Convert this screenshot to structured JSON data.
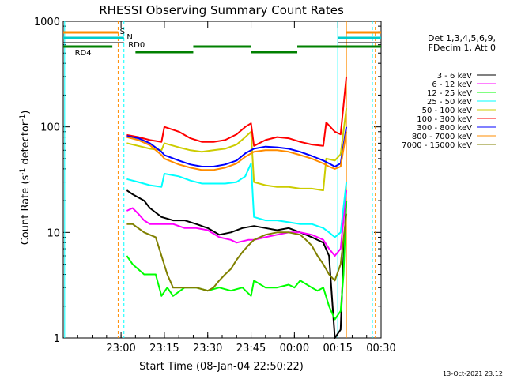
{
  "chart_data": {
    "type": "line",
    "title": "RHESSI Observing Summary Count Rates",
    "xlabel": "Start Time (08-Jan-04 22:50:22)",
    "ylabel_main": "Count Rate (s",
    "ylabel_sup1": "-1",
    "ylabel_mid": " detector",
    "ylabel_sup2": "-1",
    "ylabel_end": ")",
    "yscale": "log",
    "xlim_min": [
      -10,
      100
    ],
    "ylim": [
      1,
      1000
    ],
    "x_ticks": [
      {
        "min": 10,
        "label": "23:00"
      },
      {
        "min": 25,
        "label": "23:15"
      },
      {
        "min": 40,
        "label": "23:30"
      },
      {
        "min": 55,
        "label": "23:45"
      },
      {
        "min": 70,
        "label": "00:00"
      },
      {
        "min": 85,
        "label": "00:15"
      },
      {
        "min": 100,
        "label": "00:30"
      }
    ],
    "y_ticks": [
      {
        "value": 1,
        "label": "1"
      },
      {
        "value": 10,
        "label": "10"
      },
      {
        "value": 100,
        "label": "100"
      },
      {
        "value": 1000,
        "label": "1000"
      }
    ],
    "legend_header": [
      "Det 1,3,4,5,6,9,",
      "FDecim 1, Att 0"
    ],
    "series": [
      {
        "name": "3 - 6 keV",
        "color": "#000000",
        "points": [
          [
            12,
            25
          ],
          [
            14,
            23
          ],
          [
            18,
            20
          ],
          [
            20,
            17
          ],
          [
            24,
            14
          ],
          [
            28,
            13
          ],
          [
            32,
            13
          ],
          [
            36,
            12
          ],
          [
            40,
            11
          ],
          [
            44,
            9.5
          ],
          [
            48,
            10
          ],
          [
            52,
            11
          ],
          [
            56,
            11.5
          ],
          [
            60,
            11
          ],
          [
            64,
            10.5
          ],
          [
            68,
            11
          ],
          [
            72,
            10
          ],
          [
            76,
            9
          ],
          [
            80,
            8
          ],
          [
            82,
            6
          ],
          [
            84,
            1
          ],
          [
            86,
            1.2
          ],
          [
            87,
            6
          ],
          [
            88,
            20
          ]
        ]
      },
      {
        "name": "6 - 12 keV",
        "color": "#ff00ff",
        "points": [
          [
            12,
            16
          ],
          [
            14,
            17
          ],
          [
            16,
            15
          ],
          [
            18,
            13
          ],
          [
            20,
            12
          ],
          [
            24,
            12
          ],
          [
            28,
            12
          ],
          [
            32,
            11
          ],
          [
            36,
            11
          ],
          [
            40,
            10.5
          ],
          [
            44,
            9
          ],
          [
            48,
            8.5
          ],
          [
            50,
            8
          ],
          [
            54,
            8.5
          ],
          [
            56,
            8.5
          ],
          [
            60,
            9
          ],
          [
            64,
            9.5
          ],
          [
            68,
            10
          ],
          [
            72,
            10
          ],
          [
            76,
            9.5
          ],
          [
            78,
            9
          ],
          [
            80,
            8.5
          ],
          [
            82,
            7
          ],
          [
            84,
            6
          ],
          [
            86,
            7
          ],
          [
            88,
            25
          ]
        ]
      },
      {
        "name": "12 - 25 keV",
        "color": "#00ff00",
        "points": [
          [
            12,
            6
          ],
          [
            14,
            5
          ],
          [
            18,
            4
          ],
          [
            22,
            4
          ],
          [
            24,
            2.5
          ],
          [
            26,
            3
          ],
          [
            28,
            2.5
          ],
          [
            32,
            3
          ],
          [
            36,
            3
          ],
          [
            40,
            2.8
          ],
          [
            44,
            3
          ],
          [
            48,
            2.8
          ],
          [
            52,
            3
          ],
          [
            55,
            2.5
          ],
          [
            56,
            3.5
          ],
          [
            60,
            3
          ],
          [
            64,
            3
          ],
          [
            68,
            3.2
          ],
          [
            70,
            3
          ],
          [
            72,
            3.5
          ],
          [
            76,
            3
          ],
          [
            78,
            2.8
          ],
          [
            80,
            3
          ],
          [
            82,
            2
          ],
          [
            84,
            1.5
          ],
          [
            86,
            1.8
          ],
          [
            87,
            4
          ],
          [
            88,
            20
          ]
        ]
      },
      {
        "name": "25 - 50 keV",
        "color": "#00ffff",
        "points": [
          [
            12,
            32
          ],
          [
            16,
            30
          ],
          [
            20,
            28
          ],
          [
            24,
            27
          ],
          [
            25,
            36
          ],
          [
            30,
            34
          ],
          [
            34,
            31
          ],
          [
            38,
            29
          ],
          [
            42,
            29
          ],
          [
            46,
            29
          ],
          [
            50,
            30
          ],
          [
            53,
            34
          ],
          [
            55,
            45
          ],
          [
            56,
            14
          ],
          [
            60,
            13
          ],
          [
            64,
            13
          ],
          [
            68,
            12.5
          ],
          [
            72,
            12
          ],
          [
            76,
            12
          ],
          [
            80,
            11
          ],
          [
            82,
            10
          ],
          [
            84,
            9
          ],
          [
            86,
            10
          ],
          [
            88,
            30
          ]
        ]
      },
      {
        "name": "50 - 100 keV",
        "color": "#cccc00",
        "points": [
          [
            12,
            70
          ],
          [
            16,
            66
          ],
          [
            20,
            62
          ],
          [
            24,
            60
          ],
          [
            25,
            70
          ],
          [
            30,
            64
          ],
          [
            34,
            60
          ],
          [
            38,
            58
          ],
          [
            42,
            60
          ],
          [
            46,
            62
          ],
          [
            50,
            68
          ],
          [
            53,
            80
          ],
          [
            55,
            90
          ],
          [
            56,
            30
          ],
          [
            60,
            28
          ],
          [
            64,
            27
          ],
          [
            68,
            27
          ],
          [
            72,
            26
          ],
          [
            76,
            26
          ],
          [
            80,
            25
          ],
          [
            81,
            50
          ],
          [
            84,
            48
          ],
          [
            86,
            55
          ],
          [
            88,
            150
          ]
        ]
      },
      {
        "name": "100 - 300 keV",
        "color": "#ff0000",
        "points": [
          [
            12,
            84
          ],
          [
            16,
            80
          ],
          [
            20,
            75
          ],
          [
            24,
            72
          ],
          [
            25,
            100
          ],
          [
            30,
            90
          ],
          [
            34,
            78
          ],
          [
            38,
            72
          ],
          [
            42,
            72
          ],
          [
            46,
            75
          ],
          [
            50,
            85
          ],
          [
            53,
            100
          ],
          [
            55,
            108
          ],
          [
            56,
            66
          ],
          [
            60,
            75
          ],
          [
            64,
            80
          ],
          [
            68,
            78
          ],
          [
            72,
            72
          ],
          [
            76,
            68
          ],
          [
            80,
            66
          ],
          [
            81,
            110
          ],
          [
            84,
            90
          ],
          [
            86,
            85
          ],
          [
            88,
            300
          ]
        ]
      },
      {
        "name": "300 - 800 keV",
        "color": "#0000ff",
        "points": [
          [
            12,
            82
          ],
          [
            16,
            78
          ],
          [
            20,
            70
          ],
          [
            24,
            58
          ],
          [
            25,
            54
          ],
          [
            30,
            48
          ],
          [
            34,
            44
          ],
          [
            38,
            42
          ],
          [
            42,
            42
          ],
          [
            46,
            44
          ],
          [
            50,
            48
          ],
          [
            53,
            56
          ],
          [
            55,
            60
          ],
          [
            56,
            62
          ],
          [
            60,
            65
          ],
          [
            64,
            64
          ],
          [
            68,
            62
          ],
          [
            72,
            58
          ],
          [
            76,
            53
          ],
          [
            80,
            48
          ],
          [
            82,
            45
          ],
          [
            84,
            42
          ],
          [
            86,
            45
          ],
          [
            88,
            100
          ]
        ]
      },
      {
        "name": "800 - 7000 keV",
        "color": "#ff8c00",
        "points": [
          [
            12,
            80
          ],
          [
            16,
            75
          ],
          [
            20,
            67
          ],
          [
            24,
            54
          ],
          [
            25,
            50
          ],
          [
            30,
            44
          ],
          [
            34,
            41
          ],
          [
            38,
            39
          ],
          [
            42,
            39
          ],
          [
            46,
            41
          ],
          [
            50,
            45
          ],
          [
            53,
            52
          ],
          [
            55,
            56
          ],
          [
            56,
            58
          ],
          [
            60,
            60
          ],
          [
            64,
            60
          ],
          [
            68,
            58
          ],
          [
            72,
            54
          ],
          [
            76,
            50
          ],
          [
            80,
            45
          ],
          [
            82,
            42
          ],
          [
            84,
            40
          ],
          [
            86,
            42
          ],
          [
            88,
            90
          ]
        ]
      },
      {
        "name": "7000 - 15000 keV",
        "color": "#808000",
        "points": [
          [
            12,
            12
          ],
          [
            14,
            12
          ],
          [
            18,
            10
          ],
          [
            22,
            9
          ],
          [
            24,
            6
          ],
          [
            26,
            4
          ],
          [
            28,
            3
          ],
          [
            32,
            3
          ],
          [
            36,
            3
          ],
          [
            40,
            2.8
          ],
          [
            42,
            3
          ],
          [
            44,
            3.5
          ],
          [
            46,
            4
          ],
          [
            48,
            4.5
          ],
          [
            50,
            5.5
          ],
          [
            52,
            6.5
          ],
          [
            54,
            7.5
          ],
          [
            56,
            8.5
          ],
          [
            60,
            9.5
          ],
          [
            64,
            10
          ],
          [
            68,
            10
          ],
          [
            72,
            9.5
          ],
          [
            74,
            8.5
          ],
          [
            76,
            7.5
          ],
          [
            78,
            6
          ],
          [
            80,
            5
          ],
          [
            82,
            4
          ],
          [
            84,
            3.5
          ],
          [
            86,
            5
          ],
          [
            88,
            15
          ]
        ]
      }
    ],
    "status_bars": [
      {
        "name": "S",
        "color": "#ff8c00"
      },
      {
        "name": "N",
        "color": "#00cccc"
      },
      {
        "name": "RD0",
        "color": "#000000"
      },
      {
        "name": "RD4",
        "color": "#008000"
      }
    ],
    "timestamp": "13-Oct-2021 23:12"
  }
}
